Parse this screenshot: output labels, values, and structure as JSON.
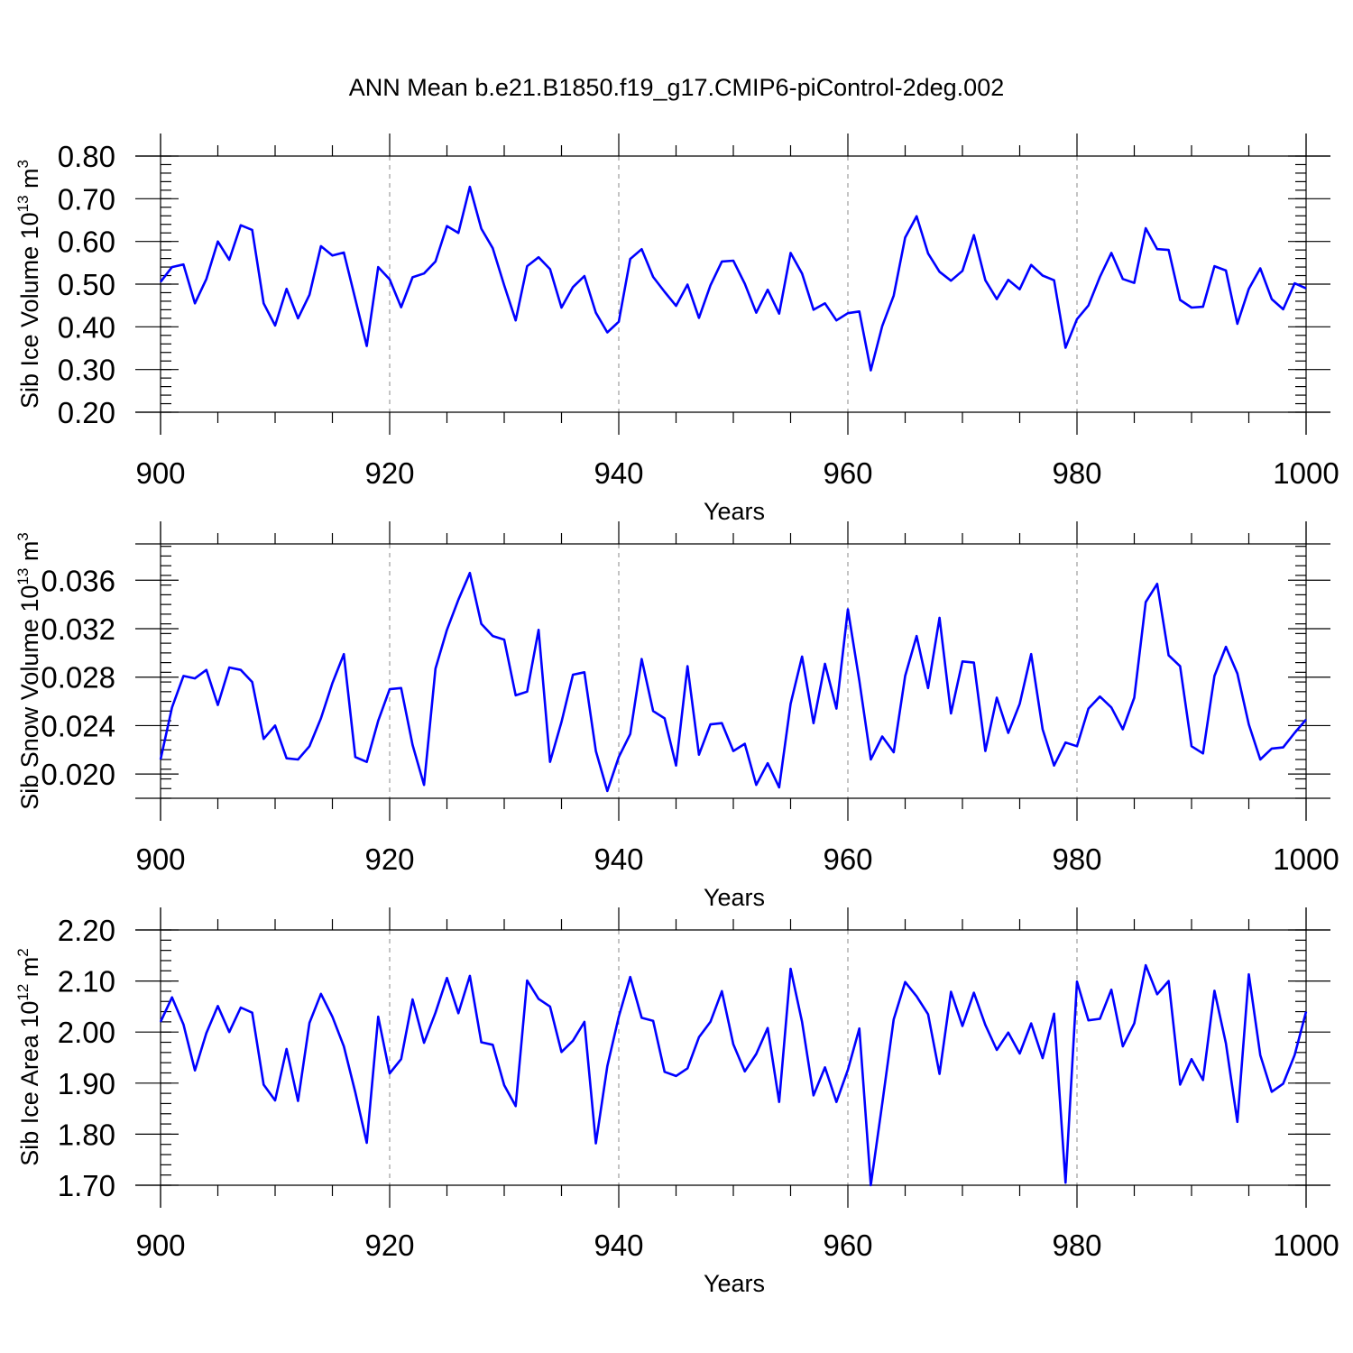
{
  "title": "ANN Mean b.e21.B1850.f19_g17.CMIP6-piControl-2deg.002",
  "colors": {
    "line": "#0000ff",
    "frame": "#000000",
    "grid": "#888888"
  },
  "chart_data": [
    {
      "type": "line",
      "ylabel": "Sib Ice Volume 10",
      "ylabel_exp": "13",
      "ylabel_unit": " m",
      "ylabel_unit_exp": "3",
      "xlabel": "Years",
      "xlim": [
        900,
        1000
      ],
      "ylim": [
        0.2,
        0.8
      ],
      "xticks": [
        900,
        920,
        940,
        960,
        980,
        1000
      ],
      "xtick_labels": [
        "900",
        "920",
        "940",
        "960",
        "980",
        "1000"
      ],
      "yticks": [
        0.2,
        0.3,
        0.4,
        0.5,
        0.6,
        0.7,
        0.8
      ],
      "ytick_labels": [
        "0.20",
        "0.30",
        "0.40",
        "0.50",
        "0.60",
        "0.70",
        "0.80"
      ],
      "grid_x": [
        920,
        940,
        960,
        980
      ],
      "x_start": 900,
      "values": [
        0.505,
        0.54,
        0.546,
        0.455,
        0.512,
        0.6,
        0.557,
        0.638,
        0.627,
        0.455,
        0.403,
        0.489,
        0.42,
        0.475,
        0.589,
        0.567,
        0.574,
        0.465,
        0.355,
        0.54,
        0.511,
        0.446,
        0.516,
        0.525,
        0.553,
        0.636,
        0.62,
        0.728,
        0.63,
        0.584,
        0.497,
        0.415,
        0.542,
        0.563,
        0.535,
        0.445,
        0.493,
        0.519,
        0.433,
        0.387,
        0.412,
        0.559,
        0.582,
        0.517,
        0.482,
        0.449,
        0.499,
        0.421,
        0.497,
        0.553,
        0.555,
        0.501,
        0.433,
        0.487,
        0.431,
        0.573,
        0.525,
        0.44,
        0.455,
        0.415,
        0.432,
        0.436,
        0.298,
        0.402,
        0.473,
        0.609,
        0.659,
        0.572,
        0.529,
        0.508,
        0.531,
        0.615,
        0.509,
        0.465,
        0.51,
        0.488,
        0.545,
        0.52,
        0.509,
        0.351,
        0.418,
        0.45,
        0.517,
        0.573,
        0.512,
        0.503,
        0.631,
        0.582,
        0.58,
        0.463,
        0.445,
        0.447,
        0.542,
        0.532,
        0.407,
        0.489,
        0.537,
        0.465,
        0.441,
        0.502,
        0.49
      ]
    },
    {
      "type": "line",
      "ylabel": "Sib Snow Volume 10",
      "ylabel_exp": "13",
      "ylabel_unit": " m",
      "ylabel_unit_exp": "3",
      "xlabel": "Years",
      "xlim": [
        900,
        1000
      ],
      "ylim": [
        0.018,
        0.039
      ],
      "xticks": [
        900,
        920,
        940,
        960,
        980,
        1000
      ],
      "xtick_labels": [
        "900",
        "920",
        "940",
        "960",
        "980",
        "1000"
      ],
      "yticks": [
        0.02,
        0.024,
        0.028,
        0.032,
        0.036
      ],
      "ytick_labels": [
        "0.020",
        "0.024",
        "0.028",
        "0.032",
        "0.036"
      ],
      "grid_x": [
        920,
        940,
        960,
        980
      ],
      "x_start": 900,
      "values": [
        0.0212,
        0.0255,
        0.0281,
        0.0279,
        0.0286,
        0.0257,
        0.0288,
        0.0286,
        0.0276,
        0.0229,
        0.024,
        0.0213,
        0.0212,
        0.0223,
        0.0246,
        0.0275,
        0.0299,
        0.0214,
        0.021,
        0.0244,
        0.027,
        0.0271,
        0.0224,
        0.0191,
        0.0287,
        0.0319,
        0.0344,
        0.0366,
        0.0324,
        0.0314,
        0.0311,
        0.0265,
        0.0268,
        0.0319,
        0.021,
        0.0243,
        0.0282,
        0.0284,
        0.0219,
        0.0186,
        0.0214,
        0.0233,
        0.0295,
        0.0252,
        0.0246,
        0.0207,
        0.0289,
        0.0216,
        0.0241,
        0.0242,
        0.0219,
        0.0225,
        0.0191,
        0.0209,
        0.0189,
        0.0258,
        0.0297,
        0.0242,
        0.0291,
        0.0254,
        0.0336,
        0.0277,
        0.0212,
        0.0231,
        0.0218,
        0.0281,
        0.0314,
        0.0271,
        0.0329,
        0.025,
        0.0293,
        0.0292,
        0.0219,
        0.0263,
        0.0234,
        0.0258,
        0.0299,
        0.0237,
        0.0207,
        0.0226,
        0.0223,
        0.0254,
        0.0264,
        0.0255,
        0.0237,
        0.0263,
        0.0342,
        0.0357,
        0.0298,
        0.0289,
        0.0223,
        0.0217,
        0.0281,
        0.0305,
        0.0283,
        0.0241,
        0.0212,
        0.0221,
        0.0222,
        0.0234,
        0.0245
      ]
    },
    {
      "type": "line",
      "ylabel": "Sib Ice Area 10",
      "ylabel_exp": "12",
      "ylabel_unit": " m",
      "ylabel_unit_exp": "2",
      "xlabel": "Years",
      "xlim": [
        900,
        1000
      ],
      "ylim": [
        1.7,
        2.2
      ],
      "xticks": [
        900,
        920,
        940,
        960,
        980,
        1000
      ],
      "xtick_labels": [
        "900",
        "920",
        "940",
        "960",
        "980",
        "1000"
      ],
      "yticks": [
        1.7,
        1.8,
        1.9,
        2.0,
        2.1,
        2.2
      ],
      "ytick_labels": [
        "1.70",
        "1.80",
        "1.90",
        "2.00",
        "2.10",
        "2.20"
      ],
      "grid_x": [
        920,
        940,
        960,
        980
      ],
      "x_start": 900,
      "values": [
        2.02,
        2.068,
        2.015,
        1.925,
        1.998,
        2.051,
        2.0,
        2.048,
        2.038,
        1.897,
        1.866,
        1.967,
        1.865,
        2.018,
        2.075,
        2.03,
        1.972,
        1.882,
        1.783,
        2.03,
        1.919,
        1.947,
        2.064,
        1.979,
        2.038,
        2.106,
        2.037,
        2.11,
        1.98,
        1.975,
        1.896,
        1.855,
        2.101,
        2.065,
        2.05,
        1.961,
        1.983,
        2.02,
        1.782,
        1.933,
        2.03,
        2.108,
        2.028,
        2.022,
        1.922,
        1.914,
        1.929,
        1.99,
        2.02,
        2.08,
        1.976,
        1.923,
        1.957,
        2.008,
        1.863,
        2.124,
        2.02,
        1.876,
        1.931,
        1.863,
        1.926,
        2.007,
        1.7,
        1.86,
        2.025,
        2.098,
        2.07,
        2.035,
        1.918,
        2.079,
        2.012,
        2.077,
        2.014,
        1.965,
        1.999,
        1.958,
        2.017,
        1.949,
        2.036,
        1.705,
        2.099,
        2.023,
        2.026,
        2.083,
        1.972,
        2.017,
        2.131,
        2.074,
        2.1,
        1.897,
        1.947,
        1.906,
        2.081,
        1.978,
        1.824,
        2.113,
        1.955,
        1.883,
        1.899,
        1.955,
        2.04
      ]
    }
  ]
}
